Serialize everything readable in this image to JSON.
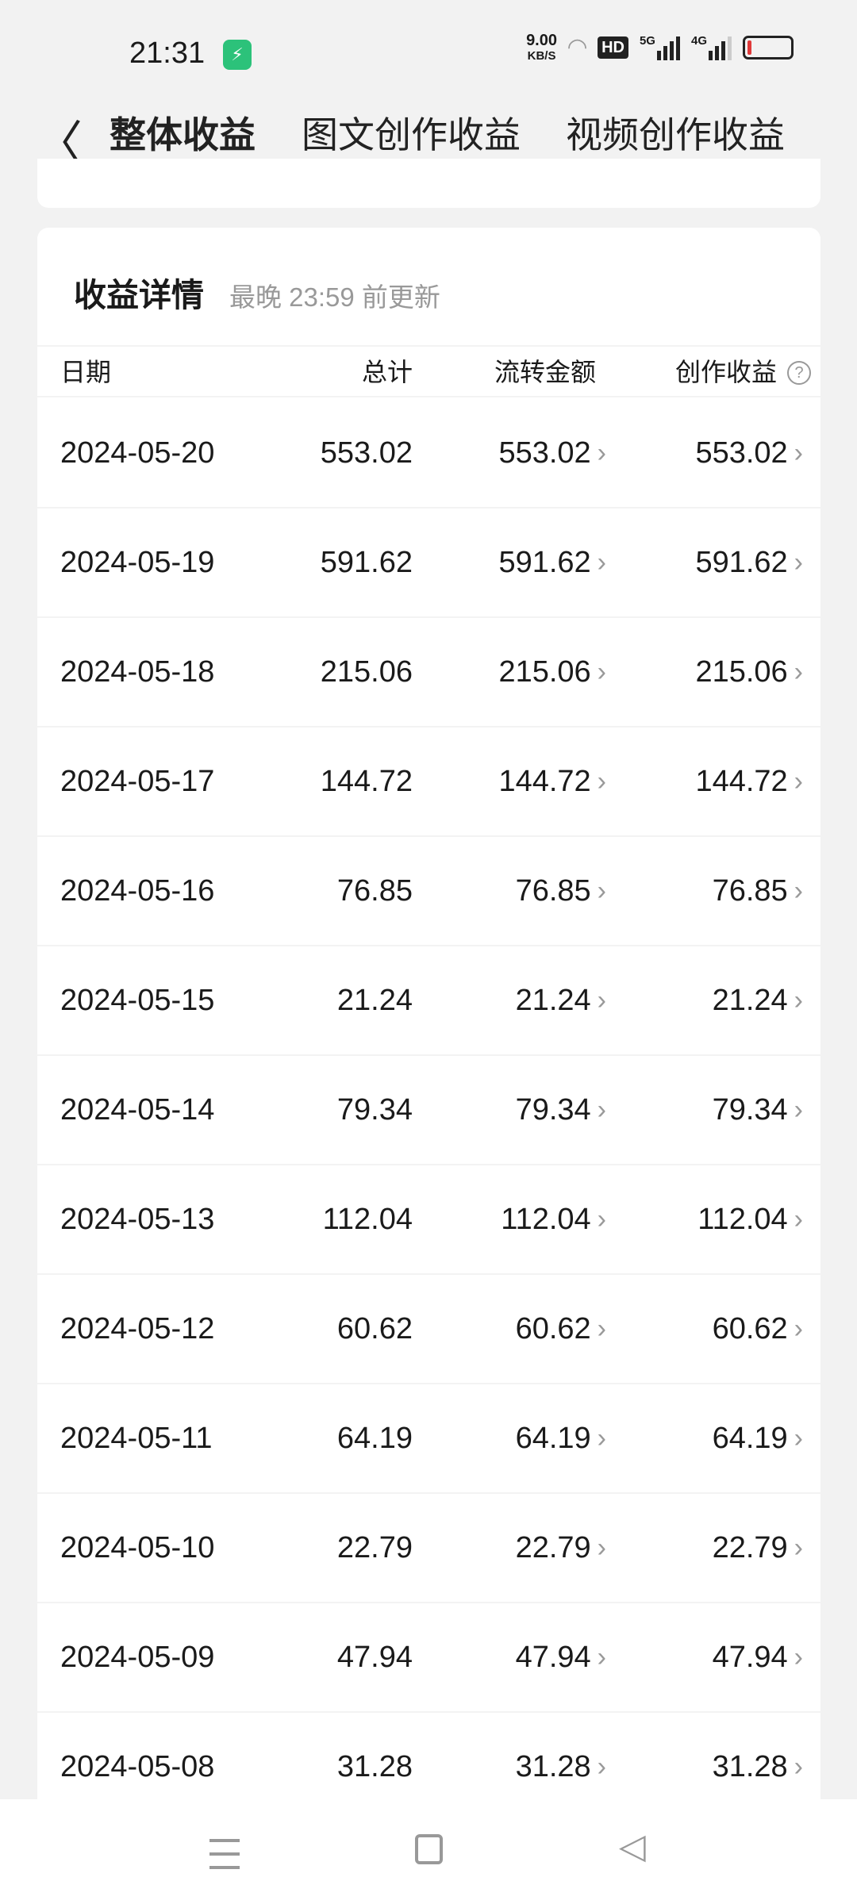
{
  "status": {
    "time": "21:31",
    "speed_value": "9.00",
    "speed_unit": "KB/S",
    "hd": "HD",
    "net1": "5G",
    "net2": "4G"
  },
  "header": {
    "tabs": [
      {
        "label": "整体收益",
        "active": true
      },
      {
        "label": "图文创作收益"
      },
      {
        "label": "视频创作收益"
      }
    ],
    "accent": "#e04646"
  },
  "card": {
    "title": "收益详情",
    "subtitle": "最晚 23:59 前更新",
    "columns": [
      "日期",
      "总计",
      "流转金额",
      "创作收益"
    ],
    "rows": [
      {
        "date": "2024-05-20",
        "total": "553.02",
        "flow": "553.02",
        "creation": "553.02"
      },
      {
        "date": "2024-05-19",
        "total": "591.62",
        "flow": "591.62",
        "creation": "591.62"
      },
      {
        "date": "2024-05-18",
        "total": "215.06",
        "flow": "215.06",
        "creation": "215.06"
      },
      {
        "date": "2024-05-17",
        "total": "144.72",
        "flow": "144.72",
        "creation": "144.72"
      },
      {
        "date": "2024-05-16",
        "total": "76.85",
        "flow": "76.85",
        "creation": "76.85"
      },
      {
        "date": "2024-05-15",
        "total": "21.24",
        "flow": "21.24",
        "creation": "21.24"
      },
      {
        "date": "2024-05-14",
        "total": "79.34",
        "flow": "79.34",
        "creation": "79.34"
      },
      {
        "date": "2024-05-13",
        "total": "112.04",
        "flow": "112.04",
        "creation": "112.04"
      },
      {
        "date": "2024-05-12",
        "total": "60.62",
        "flow": "60.62",
        "creation": "60.62"
      },
      {
        "date": "2024-05-11",
        "total": "64.19",
        "flow": "64.19",
        "creation": "64.19"
      },
      {
        "date": "2024-05-10",
        "total": "22.79",
        "flow": "22.79",
        "creation": "22.79"
      },
      {
        "date": "2024-05-09",
        "total": "47.94",
        "flow": "47.94",
        "creation": "47.94"
      },
      {
        "date": "2024-05-08",
        "total": "31.28",
        "flow": "31.28",
        "creation": "31.28"
      }
    ]
  }
}
